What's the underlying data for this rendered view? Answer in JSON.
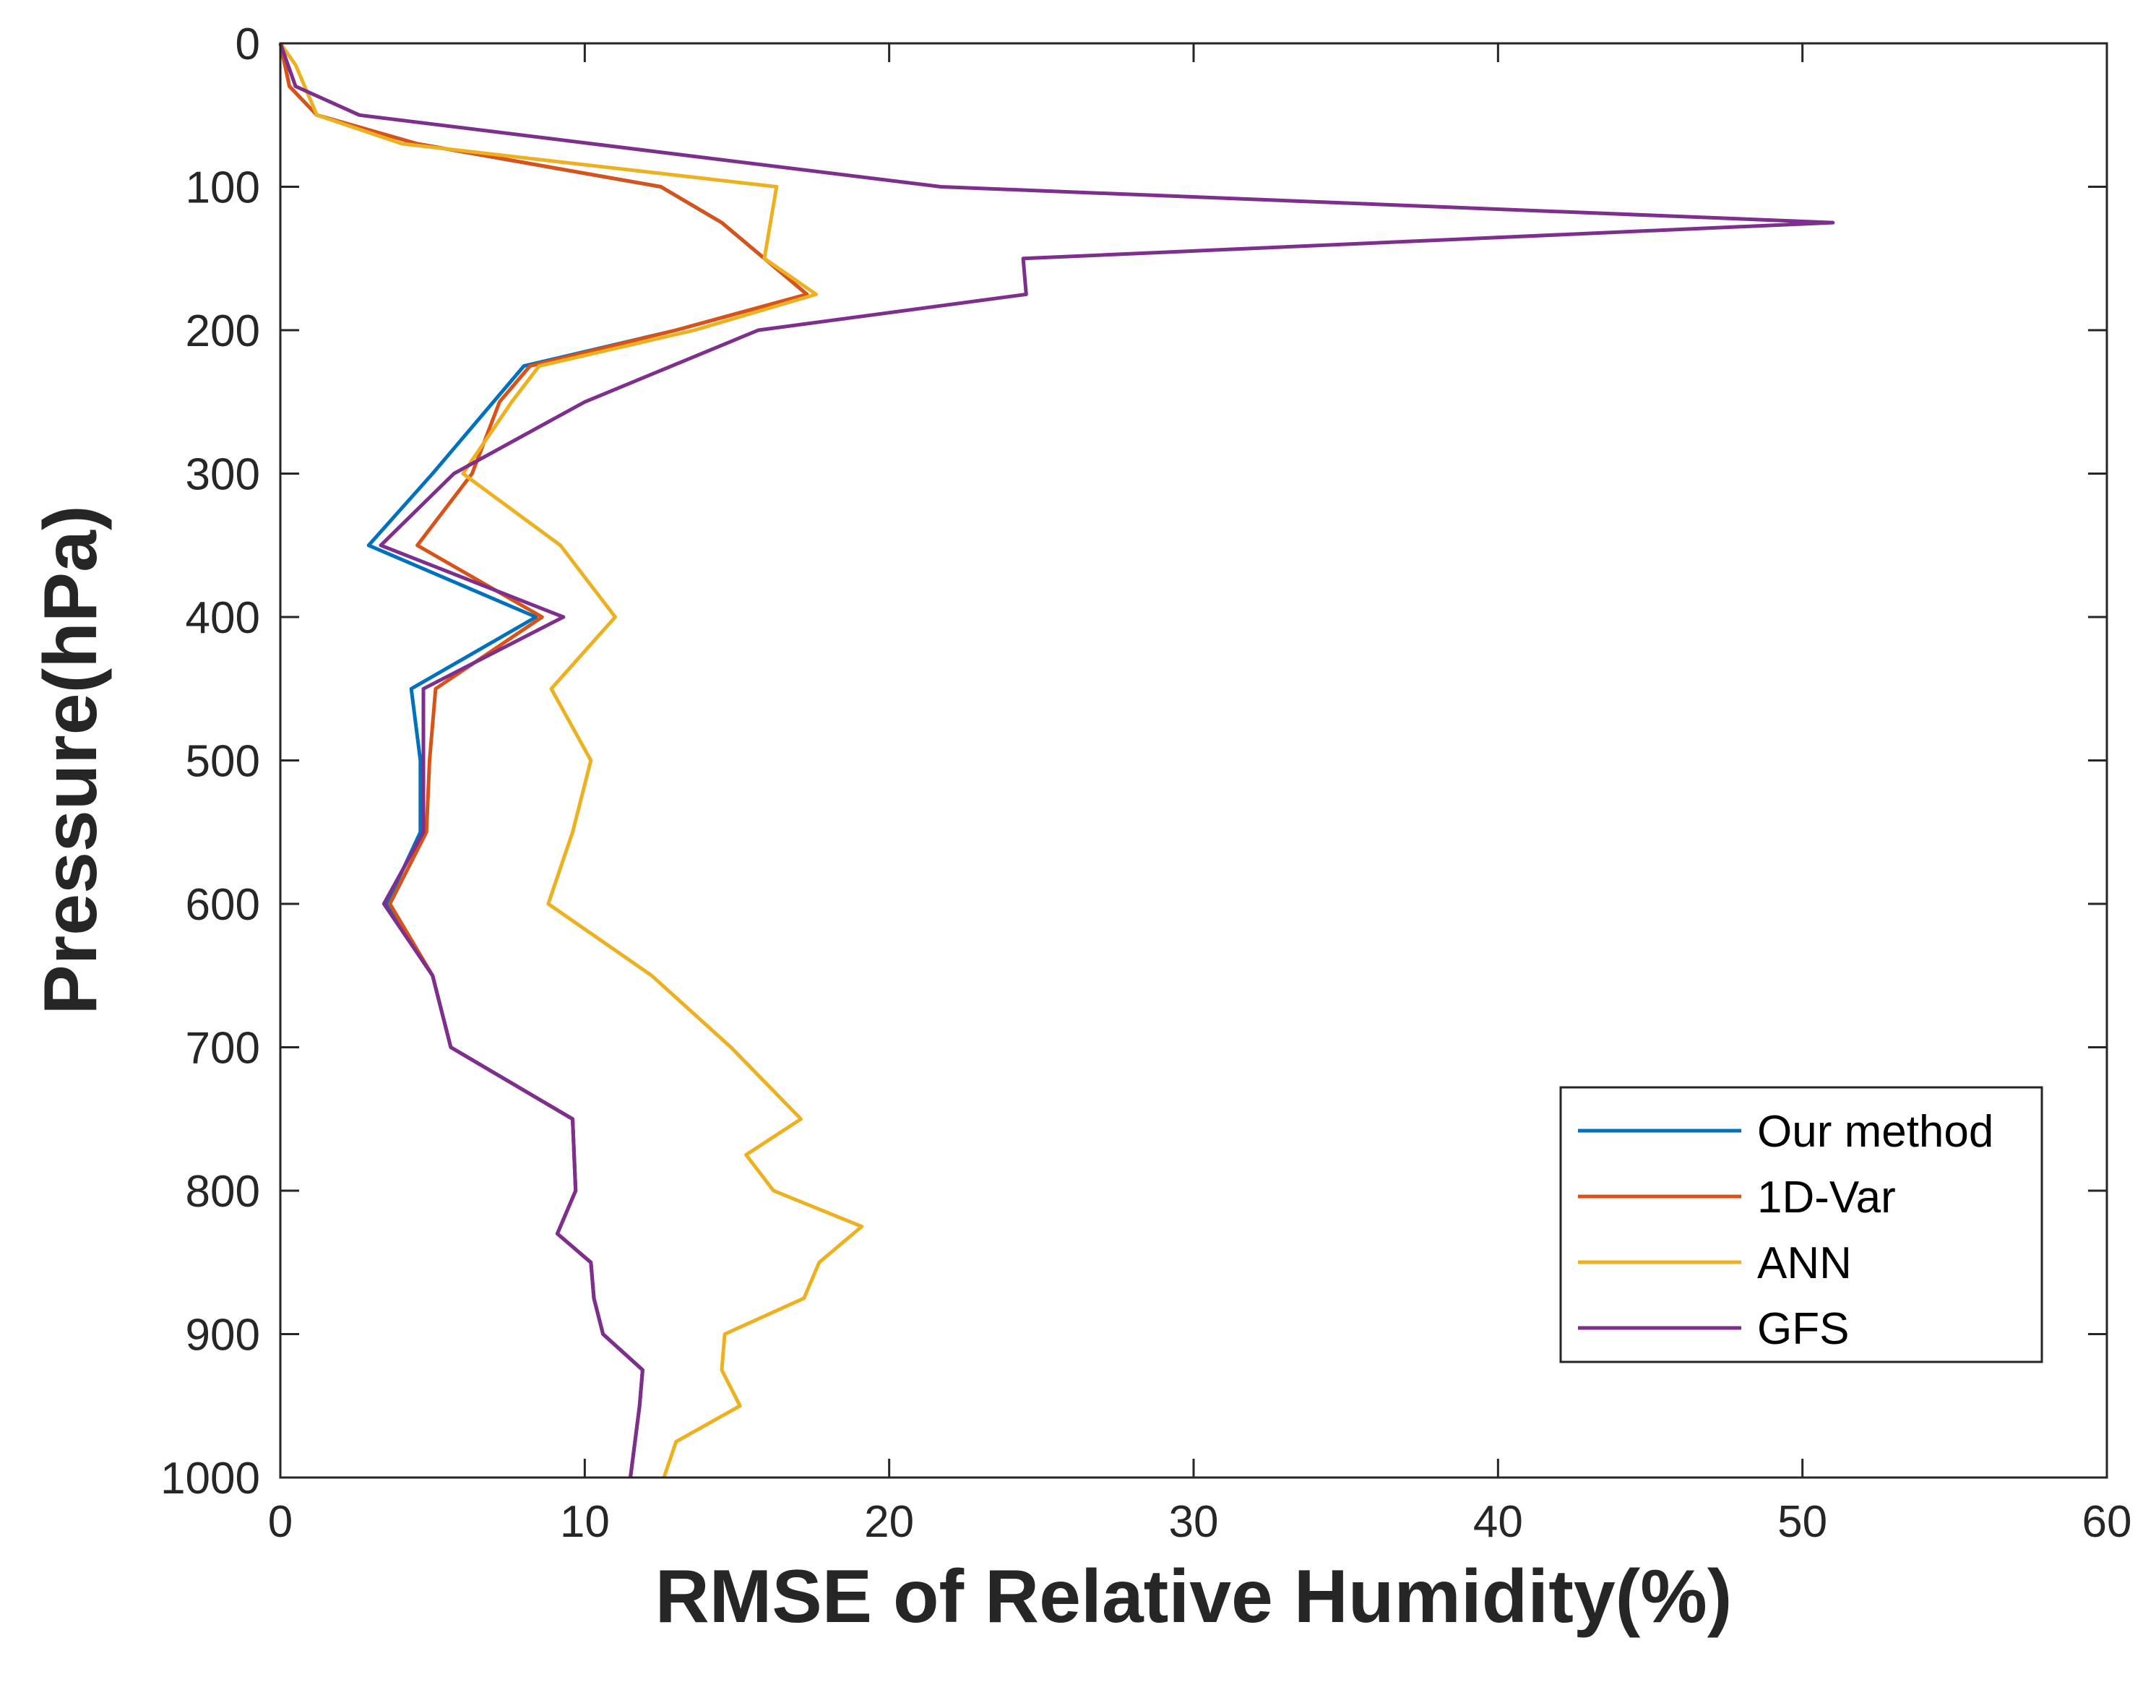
{
  "chart_data": {
    "type": "line",
    "title": "",
    "xlabel": "RMSE of Relative Humidity(%)",
    "ylabel": "Pressure(hPa)",
    "xlim": [
      0,
      60
    ],
    "ylim": [
      0,
      1000
    ],
    "y_reversed": true,
    "xticks": [
      0,
      10,
      20,
      30,
      40,
      50,
      60
    ],
    "yticks": [
      0,
      100,
      200,
      300,
      400,
      500,
      600,
      700,
      800,
      900,
      1000
    ],
    "grid": false,
    "legend_position": "lower-right",
    "series": [
      {
        "name": "Our method",
        "color": "#0072BD",
        "x": [
          0.0,
          0.3,
          1.2,
          4.5,
          12.5,
          14.5,
          17.3,
          13.0,
          8.0,
          7.0,
          5.0,
          2.9,
          8.4,
          4.3,
          4.6,
          4.6,
          3.5,
          5.0,
          5.6,
          9.6,
          9.7,
          9.1,
          10.2,
          10.3,
          10.6,
          11.9,
          11.8,
          11.5
        ],
        "y": [
          0,
          30,
          50,
          70,
          100,
          125,
          175,
          200,
          225,
          250,
          300,
          350,
          400,
          450,
          500,
          550,
          600,
          650,
          700,
          750,
          800,
          830,
          850,
          875,
          900,
          925,
          950,
          1000
        ]
      },
      {
        "name": "1D-Var",
        "color": "#D95319",
        "x": [
          0.0,
          0.3,
          1.2,
          4.5,
          12.5,
          14.5,
          17.3,
          13.0,
          8.2,
          7.2,
          6.3,
          4.5,
          8.6,
          5.1,
          4.9,
          4.8,
          3.6,
          5.0,
          5.6,
          9.6,
          9.7,
          9.1,
          10.2,
          10.3,
          10.6,
          11.9,
          11.8,
          11.5
        ],
        "y": [
          0,
          30,
          50,
          70,
          100,
          125,
          175,
          200,
          225,
          250,
          300,
          350,
          400,
          450,
          500,
          550,
          600,
          650,
          700,
          750,
          800,
          830,
          850,
          875,
          900,
          925,
          950,
          1000
        ]
      },
      {
        "name": "ANN",
        "color": "#EDB120",
        "x": [
          0.0,
          0.5,
          1.2,
          4.0,
          16.3,
          15.9,
          17.6,
          13.6,
          8.5,
          7.6,
          6.0,
          9.2,
          11.0,
          8.9,
          10.2,
          9.6,
          8.8,
          12.2,
          14.8,
          17.1,
          15.3,
          16.2,
          19.1,
          17.7,
          17.2,
          14.6,
          14.5,
          15.1,
          13.0,
          12.6
        ],
        "y": [
          0,
          15,
          50,
          70,
          100,
          150,
          175,
          200,
          225,
          250,
          300,
          350,
          400,
          450,
          500,
          550,
          600,
          650,
          700,
          750,
          775,
          800,
          825,
          850,
          875,
          900,
          925,
          950,
          975,
          1000
        ]
      },
      {
        "name": "GFS",
        "color": "#7E2F8E",
        "x": [
          0.0,
          0.5,
          2.6,
          21.7,
          51.0,
          24.4,
          24.5,
          15.7,
          10.0,
          5.7,
          3.3,
          9.3,
          4.7,
          4.7,
          4.7,
          3.4,
          5.0,
          5.6,
          9.6,
          9.7,
          9.1,
          10.2,
          10.3,
          10.6,
          11.9,
          11.8,
          11.5
        ],
        "y": [
          0,
          30,
          50,
          100,
          125,
          150,
          175,
          200,
          250,
          300,
          350,
          400,
          450,
          500,
          550,
          600,
          650,
          700,
          750,
          800,
          830,
          850,
          875,
          900,
          925,
          950,
          1000
        ]
      }
    ]
  }
}
